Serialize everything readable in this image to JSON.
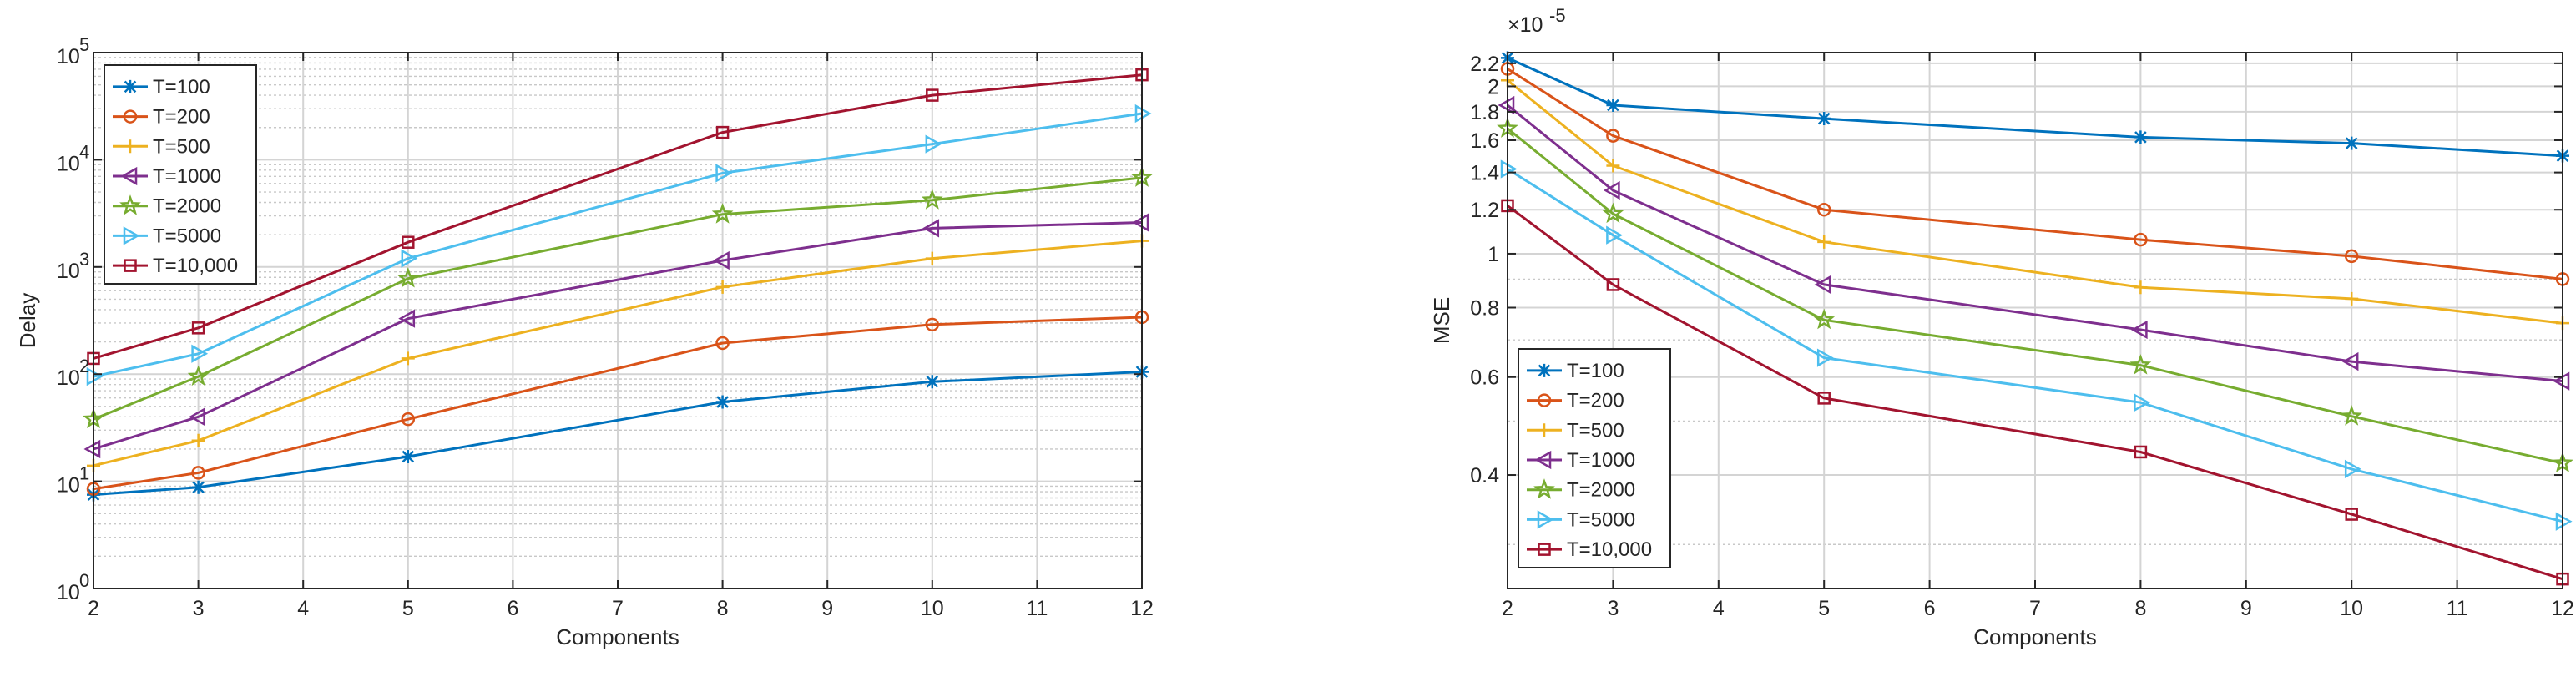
{
  "chart_data": [
    {
      "type": "line",
      "yscale": "log",
      "xlabel": "Components",
      "ylabel": "Delay",
      "x": [
        2,
        3,
        5,
        8,
        10,
        12
      ],
      "xticks": [
        2,
        3,
        4,
        5,
        6,
        7,
        8,
        9,
        10,
        11,
        12
      ],
      "xlim": [
        2,
        12
      ],
      "ylim": [
        1,
        100000
      ],
      "yticks": [
        {
          "value": 1,
          "mantissa": "10",
          "exp": "0"
        },
        {
          "value": 10,
          "mantissa": "10",
          "exp": "1"
        },
        {
          "value": 100,
          "mantissa": "10",
          "exp": "2"
        },
        {
          "value": 1000,
          "mantissa": "10",
          "exp": "3"
        },
        {
          "value": 10000,
          "mantissa": "10",
          "exp": "4"
        },
        {
          "value": 100000,
          "mantissa": "10",
          "exp": "5"
        }
      ],
      "grid": true,
      "legend_position": "top-left",
      "series": [
        {
          "name": "T=100",
          "color": "#0072BD",
          "marker": "asterisk",
          "values": [
            7.5,
            8.8,
            17,
            55,
            85,
            105
          ]
        },
        {
          "name": "T=200",
          "color": "#D95319",
          "marker": "circle",
          "values": [
            8.5,
            12,
            38,
            195,
            290,
            340
          ]
        },
        {
          "name": "T=500",
          "color": "#EDB120",
          "marker": "plus",
          "values": [
            14,
            24,
            140,
            650,
            1200,
            1750
          ]
        },
        {
          "name": "T=1000",
          "color": "#7E2F8E",
          "marker": "triangle-left",
          "values": [
            20,
            40,
            330,
            1150,
            2300,
            2600
          ]
        },
        {
          "name": "T=2000",
          "color": "#77AC30",
          "marker": "star",
          "values": [
            38,
            95,
            780,
            3100,
            4200,
            6800
          ]
        },
        {
          "name": "T=5000",
          "color": "#4DBEEE",
          "marker": "triangle-right",
          "values": [
            95,
            155,
            1200,
            7500,
            14000,
            27000
          ]
        },
        {
          "name": "T=10,000",
          "color": "#A2142F",
          "marker": "square",
          "values": [
            140,
            270,
            1700,
            18000,
            40000,
            62000
          ]
        }
      ]
    },
    {
      "type": "line",
      "yscale": "log",
      "xlabel": "Components",
      "ylabel": "MSE",
      "y_multiplier": {
        "base": "×10",
        "exp": "-5"
      },
      "x": [
        2,
        3,
        5,
        8,
        10,
        12
      ],
      "xticks": [
        2,
        3,
        4,
        5,
        6,
        7,
        8,
        9,
        10,
        11,
        12
      ],
      "xlim": [
        2,
        12
      ],
      "ylim": [
        0.25,
        2.3
      ],
      "yticks": [
        {
          "value": 0.4,
          "label": "0.4"
        },
        {
          "value": 0.6,
          "label": "0.6"
        },
        {
          "value": 0.8,
          "label": "0.8"
        },
        {
          "value": 1.0,
          "label": "1"
        },
        {
          "value": 1.2,
          "label": "1.2"
        },
        {
          "value": 1.4,
          "label": "1.4"
        },
        {
          "value": 1.6,
          "label": "1.6"
        },
        {
          "value": 1.8,
          "label": "1.8"
        },
        {
          "value": 2.0,
          "label": "2"
        },
        {
          "value": 2.2,
          "label": "2.2"
        }
      ],
      "grid": true,
      "legend_position": "bottom-left",
      "series": [
        {
          "name": "T=100",
          "color": "#0072BD",
          "marker": "asterisk",
          "values": [
            2.25,
            1.85,
            1.75,
            1.62,
            1.58,
            1.5
          ]
        },
        {
          "name": "T=200",
          "color": "#D95319",
          "marker": "circle",
          "values": [
            2.15,
            1.63,
            1.2,
            1.06,
            0.99,
            0.9
          ]
        },
        {
          "name": "T=500",
          "color": "#EDB120",
          "marker": "plus",
          "values": [
            2.05,
            1.44,
            1.05,
            0.87,
            0.83,
            0.75
          ]
        },
        {
          "name": "T=1000",
          "color": "#7E2F8E",
          "marker": "triangle-left",
          "values": [
            1.85,
            1.3,
            0.88,
            0.73,
            0.64,
            0.59
          ]
        },
        {
          "name": "T=2000",
          "color": "#77AC30",
          "marker": "star",
          "values": [
            1.68,
            1.18,
            0.76,
            0.63,
            0.51,
            0.42
          ]
        },
        {
          "name": "T=5000",
          "color": "#4DBEEE",
          "marker": "triangle-right",
          "values": [
            1.42,
            1.08,
            0.65,
            0.54,
            0.41,
            0.33
          ]
        },
        {
          "name": "T=10,000",
          "color": "#A2142F",
          "marker": "square",
          "values": [
            1.22,
            0.88,
            0.55,
            0.44,
            0.34,
            0.26
          ]
        }
      ]
    }
  ]
}
